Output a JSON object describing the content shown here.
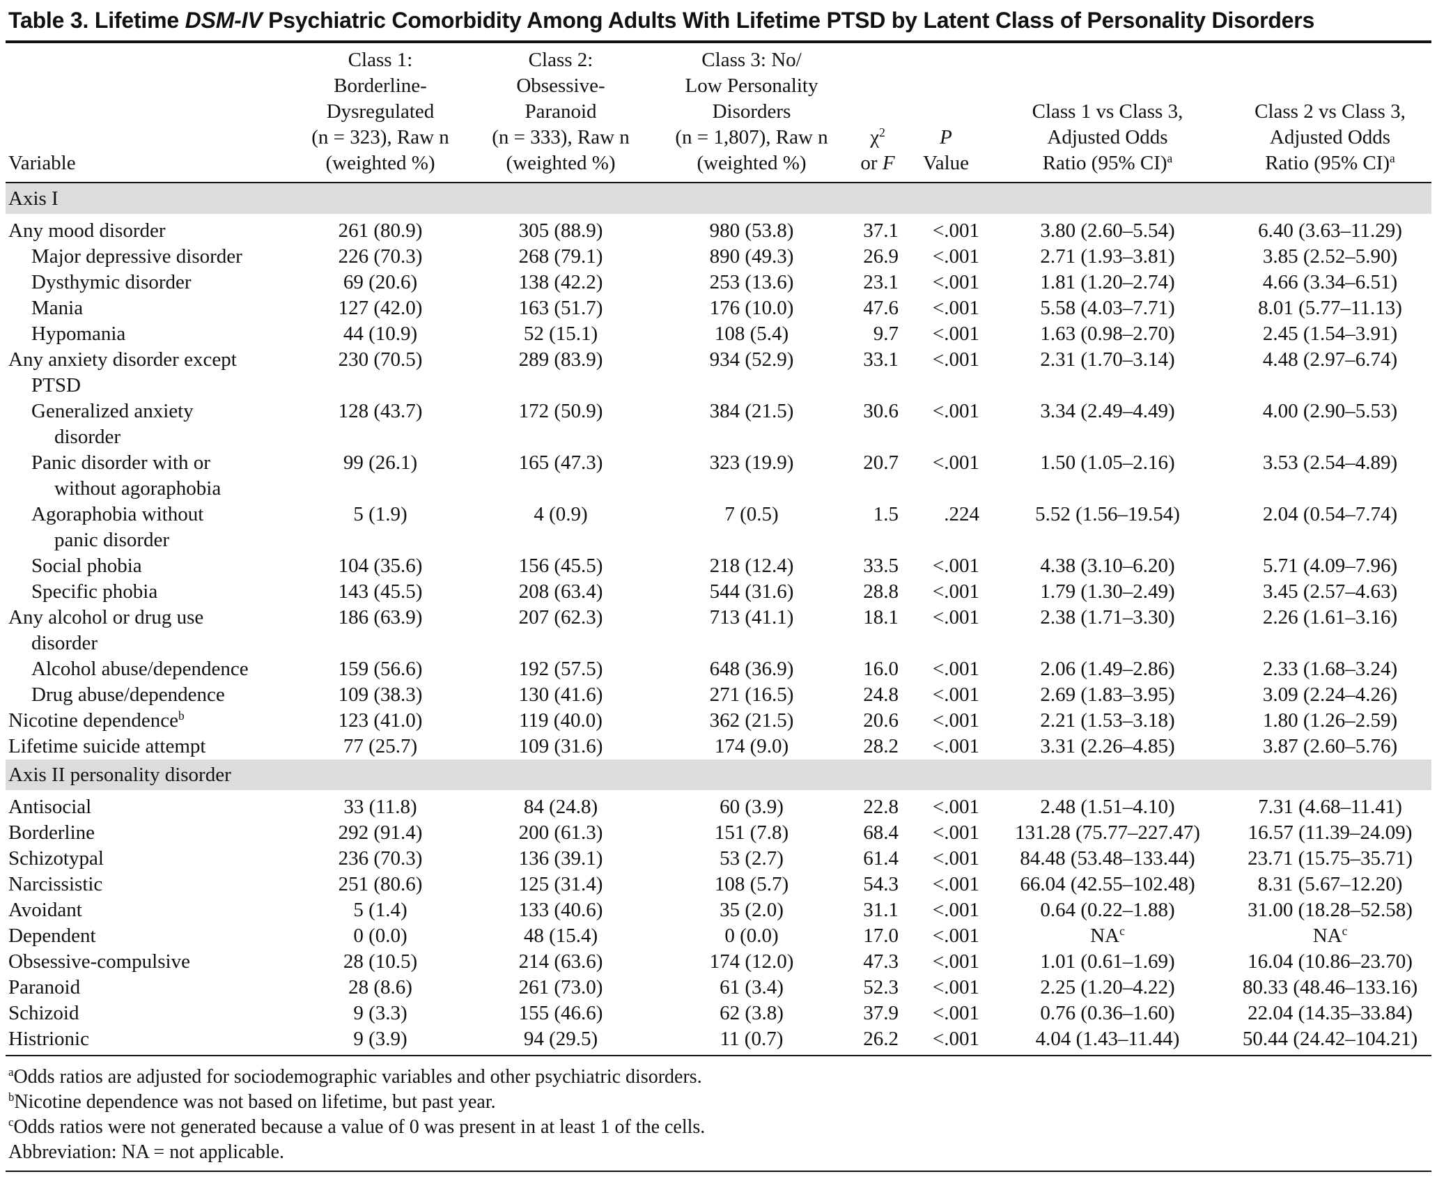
{
  "title": [
    "Table 3. Lifetime ",
    {
      "text": "DSM-IV",
      "style": "italic"
    },
    " Psychiatric Comorbidity Among Adults With Lifetime PTSD by Latent Class of Personality Disorders"
  ],
  "table": {
    "columns": [
      [
        "Variable"
      ],
      [
        "Class 1:",
        "Borderline-",
        "Dysregulated",
        "(n = 323), Raw n",
        "(weighted %)"
      ],
      [
        "Class 2:",
        "Obsessive-",
        "Paranoid",
        "(n = 333), Raw n",
        "(weighted %)"
      ],
      [
        "Class 3: No/",
        "Low Personality",
        "Disorders",
        "(n = 1,807), Raw n",
        "(weighted %)"
      ],
      [
        [
          "χ",
          {
            "text": "2",
            "style": "sup"
          }
        ],
        [
          "or ",
          {
            "text": "F",
            "style": "italic"
          }
        ]
      ],
      [
        [
          {
            "text": "P",
            "style": "italic"
          }
        ],
        "Value"
      ],
      [
        "Class 1 vs Class 3,",
        "Adjusted Odds",
        [
          "Ratio (95% CI)",
          {
            "text": "a",
            "style": "sup"
          }
        ]
      ],
      [
        "Class 2 vs Class 3,",
        "Adjusted Odds",
        [
          "Ratio (95% CI)",
          {
            "text": "a",
            "style": "sup"
          }
        ]
      ]
    ],
    "sections": [
      {
        "label": "Axis I",
        "rows": [
          {
            "level": 0,
            "variable": [
              "Any mood disorder"
            ],
            "cells": [
              "261 (80.9)",
              "305 (88.9)",
              "980 (53.8)",
              "37.1",
              "<.001",
              "3.80 (2.60–5.54)",
              "6.40 (3.63–11.29)"
            ]
          },
          {
            "level": 1,
            "variable": [
              "Major depressive disorder"
            ],
            "cells": [
              "226 (70.3)",
              "268 (79.1)",
              "890 (49.3)",
              "26.9",
              "<.001",
              "2.71 (1.93–3.81)",
              "3.85 (2.52–5.90)"
            ]
          },
          {
            "level": 1,
            "variable": [
              "Dysthymic disorder"
            ],
            "cells": [
              "69 (20.6)",
              "138 (42.2)",
              "253 (13.6)",
              "23.1",
              "<.001",
              "1.81 (1.20–2.74)",
              "4.66 (3.34–6.51)"
            ]
          },
          {
            "level": 1,
            "variable": [
              "Mania"
            ],
            "cells": [
              "127 (42.0)",
              "163 (51.7)",
              "176 (10.0)",
              "47.6",
              "<.001",
              "5.58 (4.03–7.71)",
              "8.01 (5.77–11.13)"
            ]
          },
          {
            "level": 1,
            "variable": [
              "Hypomania"
            ],
            "cells": [
              "44 (10.9)",
              "52 (15.1)",
              "108 (5.4)",
              "9.7",
              "<.001",
              "1.63 (0.98–2.70)",
              "2.45 (1.54–3.91)"
            ]
          },
          {
            "level": 0,
            "variable": [
              "Any anxiety disorder except",
              "PTSD"
            ],
            "cells": [
              "230 (70.5)",
              "289 (83.9)",
              "934 (52.9)",
              "33.1",
              "<.001",
              "2.31 (1.70–3.14)",
              "4.48 (2.97–6.74)"
            ]
          },
          {
            "level": 1,
            "variable": [
              "Generalized anxiety",
              "disorder"
            ],
            "cells": [
              "128 (43.7)",
              "172 (50.9)",
              "384 (21.5)",
              "30.6",
              "<.001",
              "3.34 (2.49–4.49)",
              "4.00 (2.90–5.53)"
            ]
          },
          {
            "level": 1,
            "variable": [
              "Panic disorder with or",
              "without agoraphobia"
            ],
            "cells": [
              "99 (26.1)",
              "165 (47.3)",
              "323 (19.9)",
              "20.7",
              "<.001",
              "1.50 (1.05–2.16)",
              "3.53 (2.54–4.89)"
            ]
          },
          {
            "level": 1,
            "variable": [
              "Agoraphobia without",
              "panic disorder"
            ],
            "cells": [
              "5 (1.9)",
              "4 (0.9)",
              "7 (0.5)",
              "1.5",
              ".224",
              "5.52 (1.56–19.54)",
              "2.04 (0.54–7.74)"
            ]
          },
          {
            "level": 1,
            "variable": [
              "Social phobia"
            ],
            "cells": [
              "104 (35.6)",
              "156 (45.5)",
              "218 (12.4)",
              "33.5",
              "<.001",
              "4.38 (3.10–6.20)",
              "5.71 (4.09–7.96)"
            ]
          },
          {
            "level": 1,
            "variable": [
              "Specific phobia"
            ],
            "cells": [
              "143 (45.5)",
              "208 (63.4)",
              "544 (31.6)",
              "28.8",
              "<.001",
              "1.79 (1.30–2.49)",
              "3.45 (2.57–4.63)"
            ]
          },
          {
            "level": 0,
            "variable": [
              "Any alcohol or drug use",
              "disorder"
            ],
            "cells": [
              "186 (63.9)",
              "207 (62.3)",
              "713 (41.1)",
              "18.1",
              "<.001",
              "2.38 (1.71–3.30)",
              "2.26 (1.61–3.16)"
            ]
          },
          {
            "level": 1,
            "variable": [
              "Alcohol abuse/dependence"
            ],
            "cells": [
              "159 (56.6)",
              "192 (57.5)",
              "648 (36.9)",
              "16.0",
              "<.001",
              "2.06 (1.49–2.86)",
              "2.33 (1.68–3.24)"
            ]
          },
          {
            "level": 1,
            "variable": [
              "Drug abuse/dependence"
            ],
            "cells": [
              "109 (38.3)",
              "130 (41.6)",
              "271 (16.5)",
              "24.8",
              "<.001",
              "2.69 (1.83–3.95)",
              "3.09 (2.24–4.26)"
            ]
          },
          {
            "level": 0,
            "variable": [
              [
                "Nicotine dependence",
                {
                  "text": "b",
                  "style": "sup"
                }
              ]
            ],
            "cells": [
              "123 (41.0)",
              "119 (40.0)",
              "362 (21.5)",
              "20.6",
              "<.001",
              "2.21 (1.53–3.18)",
              "1.80 (1.26–2.59)"
            ]
          },
          {
            "level": 0,
            "variable": [
              "Lifetime suicide attempt"
            ],
            "cells": [
              "77 (25.7)",
              "109 (31.6)",
              "174 (9.0)",
              "28.2",
              "<.001",
              "3.31 (2.26–4.85)",
              "3.87 (2.60–5.76)"
            ]
          }
        ]
      },
      {
        "label": "Axis II personality disorder",
        "rows": [
          {
            "level": 0,
            "variable": [
              "Antisocial"
            ],
            "cells": [
              "33 (11.8)",
              "84 (24.8)",
              "60 (3.9)",
              "22.8",
              "<.001",
              "2.48 (1.51–4.10)",
              "7.31 (4.68–11.41)"
            ]
          },
          {
            "level": 0,
            "variable": [
              "Borderline"
            ],
            "cells": [
              "292 (91.4)",
              "200 (61.3)",
              "151 (7.8)",
              "68.4",
              "<.001",
              "131.28 (75.77–227.47)",
              "16.57 (11.39–24.09)"
            ]
          },
          {
            "level": 0,
            "variable": [
              "Schizotypal"
            ],
            "cells": [
              "236 (70.3)",
              "136 (39.1)",
              "53 (2.7)",
              "61.4",
              "<.001",
              "84.48 (53.48–133.44)",
              "23.71 (15.75–35.71)"
            ]
          },
          {
            "level": 0,
            "variable": [
              "Narcissistic"
            ],
            "cells": [
              "251 (80.6)",
              "125 (31.4)",
              "108 (5.7)",
              "54.3",
              "<.001",
              "66.04 (42.55–102.48)",
              "8.31 (5.67–12.20)"
            ]
          },
          {
            "level": 0,
            "variable": [
              "Avoidant"
            ],
            "cells": [
              "5 (1.4)",
              "133 (40.6)",
              "35 (2.0)",
              "31.1",
              "<.001",
              "0.64 (0.22–1.88)",
              "31.00 (18.28–52.58)"
            ]
          },
          {
            "level": 0,
            "variable": [
              "Dependent"
            ],
            "cells": [
              "0 (0.0)",
              "48 (15.4)",
              "0 (0.0)",
              "17.0",
              "<.001",
              [
                "NA",
                {
                  "text": "c",
                  "style": "sup"
                }
              ],
              [
                "NA",
                {
                  "text": "c",
                  "style": "sup"
                }
              ]
            ]
          },
          {
            "level": 0,
            "variable": [
              "Obsessive-compulsive"
            ],
            "cells": [
              "28 (10.5)",
              "214 (63.6)",
              "174 (12.0)",
              "47.3",
              "<.001",
              "1.01 (0.61–1.69)",
              "16.04 (10.86–23.70)"
            ]
          },
          {
            "level": 0,
            "variable": [
              "Paranoid"
            ],
            "cells": [
              "28 (8.6)",
              "261 (73.0)",
              "61 (3.4)",
              "52.3",
              "<.001",
              "2.25 (1.20–4.22)",
              "80.33 (48.46–133.16)"
            ]
          },
          {
            "level": 0,
            "variable": [
              "Schizoid"
            ],
            "cells": [
              "9 (3.3)",
              "155 (46.6)",
              "62 (3.8)",
              "37.9",
              "<.001",
              "0.76 (0.36–1.60)",
              "22.04 (14.35–33.84)"
            ]
          },
          {
            "level": 0,
            "variable": [
              "Histrionic"
            ],
            "cells": [
              "9 (3.9)",
              "94 (29.5)",
              "11 (0.7)",
              "26.2",
              "<.001",
              "4.04 (1.43–11.44)",
              "50.44 (24.42–104.21)"
            ]
          }
        ]
      }
    ]
  },
  "footnotes": [
    [
      {
        "text": "a",
        "style": "sup"
      },
      "Odds ratios are adjusted for sociodemographic variables and other psychiatric disorders."
    ],
    [
      {
        "text": "b",
        "style": "sup"
      },
      "Nicotine dependence was not based on lifetime, but past year."
    ],
    [
      {
        "text": "c",
        "style": "sup"
      },
      "Odds ratios were not generated because a value of 0 was present in at least 1 of the cells."
    ],
    "Abbreviation: NA = not applicable."
  ]
}
